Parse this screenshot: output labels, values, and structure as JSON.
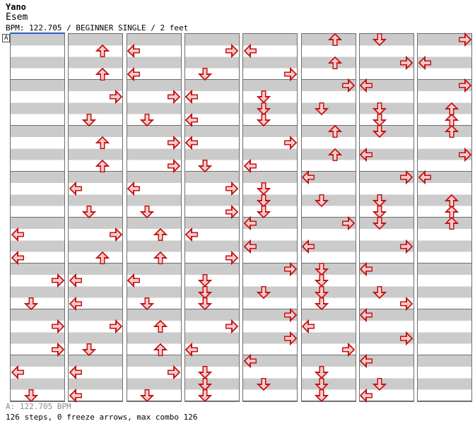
{
  "header": {
    "artist": "Yano",
    "title": "Esem",
    "info": "BPM: 122.705 / BEGINNER SINGLE / 2 feet"
  },
  "section_marker": {
    "label": "A"
  },
  "footer": {
    "bpm_line": "A: 122.705 BPM",
    "stats_line": "126 steps, 0 freeze arrows, max combo 126"
  },
  "colors": {
    "stripe": "#cbcbcb",
    "border": "#6e6e6e",
    "arrow_fill": "#f9cbcb",
    "arrow_stroke": "#c41414",
    "marker_blue": "#2e5fc2",
    "footer_gray": "#8a8a8a",
    "background": "#ffffff",
    "text": "#000000"
  },
  "chart": {
    "lanes": [
      "left",
      "down",
      "up",
      "right"
    ],
    "rows_per_column": 32,
    "rows_per_measure": 4,
    "total_steps": 126,
    "columns": [
      {
        "arrows": [
          {
            "row": 17,
            "dir": "left"
          },
          {
            "row": 19,
            "dir": "left"
          },
          {
            "row": 21,
            "dir": "right"
          },
          {
            "row": 23,
            "dir": "down"
          },
          {
            "row": 25,
            "dir": "right"
          },
          {
            "row": 27,
            "dir": "right"
          },
          {
            "row": 29,
            "dir": "left"
          },
          {
            "row": 31,
            "dir": "down"
          }
        ]
      },
      {
        "arrows": [
          {
            "row": 1,
            "dir": "up"
          },
          {
            "row": 3,
            "dir": "up"
          },
          {
            "row": 5,
            "dir": "right"
          },
          {
            "row": 7,
            "dir": "down"
          },
          {
            "row": 9,
            "dir": "up"
          },
          {
            "row": 11,
            "dir": "up"
          },
          {
            "row": 13,
            "dir": "left"
          },
          {
            "row": 15,
            "dir": "down"
          },
          {
            "row": 17,
            "dir": "right"
          },
          {
            "row": 19,
            "dir": "up"
          },
          {
            "row": 21,
            "dir": "left"
          },
          {
            "row": 23,
            "dir": "left"
          },
          {
            "row": 25,
            "dir": "right"
          },
          {
            "row": 27,
            "dir": "down"
          },
          {
            "row": 29,
            "dir": "left"
          },
          {
            "row": 31,
            "dir": "left"
          }
        ]
      },
      {
        "arrows": [
          {
            "row": 1,
            "dir": "left"
          },
          {
            "row": 3,
            "dir": "left"
          },
          {
            "row": 5,
            "dir": "right"
          },
          {
            "row": 7,
            "dir": "down"
          },
          {
            "row": 9,
            "dir": "right"
          },
          {
            "row": 11,
            "dir": "right"
          },
          {
            "row": 13,
            "dir": "left"
          },
          {
            "row": 15,
            "dir": "down"
          },
          {
            "row": 17,
            "dir": "up"
          },
          {
            "row": 19,
            "dir": "up"
          },
          {
            "row": 21,
            "dir": "left"
          },
          {
            "row": 23,
            "dir": "down"
          },
          {
            "row": 25,
            "dir": "up"
          },
          {
            "row": 27,
            "dir": "up"
          },
          {
            "row": 29,
            "dir": "right"
          },
          {
            "row": 31,
            "dir": "down"
          }
        ]
      },
      {
        "arrows": [
          {
            "row": 1,
            "dir": "right"
          },
          {
            "row": 3,
            "dir": "down"
          },
          {
            "row": 5,
            "dir": "left"
          },
          {
            "row": 7,
            "dir": "left"
          },
          {
            "row": 9,
            "dir": "left"
          },
          {
            "row": 11,
            "dir": "down"
          },
          {
            "row": 13,
            "dir": "right"
          },
          {
            "row": 15,
            "dir": "right"
          },
          {
            "row": 17,
            "dir": "left"
          },
          {
            "row": 19,
            "dir": "right"
          },
          {
            "row": 21,
            "dir": "down"
          },
          {
            "row": 22,
            "dir": "down"
          },
          {
            "row": 23,
            "dir": "down"
          },
          {
            "row": 25,
            "dir": "right"
          },
          {
            "row": 27,
            "dir": "left"
          },
          {
            "row": 29,
            "dir": "down"
          },
          {
            "row": 30,
            "dir": "down"
          },
          {
            "row": 31,
            "dir": "down"
          }
        ]
      },
      {
        "arrows": [
          {
            "row": 1,
            "dir": "left"
          },
          {
            "row": 3,
            "dir": "right"
          },
          {
            "row": 5,
            "dir": "down"
          },
          {
            "row": 6,
            "dir": "down"
          },
          {
            "row": 7,
            "dir": "down"
          },
          {
            "row": 9,
            "dir": "right"
          },
          {
            "row": 11,
            "dir": "left"
          },
          {
            "row": 13,
            "dir": "down"
          },
          {
            "row": 14,
            "dir": "down"
          },
          {
            "row": 15,
            "dir": "down"
          },
          {
            "row": 16,
            "dir": "left"
          },
          {
            "row": 18,
            "dir": "left"
          },
          {
            "row": 20,
            "dir": "right"
          },
          {
            "row": 22,
            "dir": "down"
          },
          {
            "row": 24,
            "dir": "right"
          },
          {
            "row": 26,
            "dir": "right"
          },
          {
            "row": 28,
            "dir": "left"
          },
          {
            "row": 30,
            "dir": "down"
          }
        ]
      },
      {
        "arrows": [
          {
            "row": 0,
            "dir": "up"
          },
          {
            "row": 2,
            "dir": "up"
          },
          {
            "row": 4,
            "dir": "right"
          },
          {
            "row": 6,
            "dir": "down"
          },
          {
            "row": 8,
            "dir": "up"
          },
          {
            "row": 10,
            "dir": "up"
          },
          {
            "row": 12,
            "dir": "left"
          },
          {
            "row": 14,
            "dir": "down"
          },
          {
            "row": 16,
            "dir": "right"
          },
          {
            "row": 18,
            "dir": "left"
          },
          {
            "row": 20,
            "dir": "down"
          },
          {
            "row": 21,
            "dir": "down"
          },
          {
            "row": 22,
            "dir": "down"
          },
          {
            "row": 23,
            "dir": "down"
          },
          {
            "row": 25,
            "dir": "left"
          },
          {
            "row": 27,
            "dir": "right"
          },
          {
            "row": 29,
            "dir": "down"
          },
          {
            "row": 30,
            "dir": "down"
          },
          {
            "row": 31,
            "dir": "down"
          }
        ]
      },
      {
        "arrows": [
          {
            "row": 0,
            "dir": "down"
          },
          {
            "row": 2,
            "dir": "right"
          },
          {
            "row": 4,
            "dir": "left"
          },
          {
            "row": 6,
            "dir": "down"
          },
          {
            "row": 7,
            "dir": "down"
          },
          {
            "row": 8,
            "dir": "down"
          },
          {
            "row": 10,
            "dir": "left"
          },
          {
            "row": 12,
            "dir": "right"
          },
          {
            "row": 14,
            "dir": "down"
          },
          {
            "row": 15,
            "dir": "down"
          },
          {
            "row": 16,
            "dir": "down"
          },
          {
            "row": 18,
            "dir": "right"
          },
          {
            "row": 20,
            "dir": "left"
          },
          {
            "row": 22,
            "dir": "down"
          },
          {
            "row": 23,
            "dir": "right"
          },
          {
            "row": 24,
            "dir": "left"
          },
          {
            "row": 26,
            "dir": "right"
          },
          {
            "row": 28,
            "dir": "left"
          },
          {
            "row": 30,
            "dir": "down"
          },
          {
            "row": 31,
            "dir": "left"
          }
        ]
      },
      {
        "arrows": [
          {
            "row": 0,
            "dir": "right"
          },
          {
            "row": 2,
            "dir": "left"
          },
          {
            "row": 4,
            "dir": "right"
          },
          {
            "row": 6,
            "dir": "up"
          },
          {
            "row": 7,
            "dir": "up"
          },
          {
            "row": 8,
            "dir": "up"
          },
          {
            "row": 10,
            "dir": "right"
          },
          {
            "row": 12,
            "dir": "left"
          },
          {
            "row": 14,
            "dir": "up"
          },
          {
            "row": 15,
            "dir": "up"
          },
          {
            "row": 16,
            "dir": "up"
          }
        ]
      }
    ]
  }
}
